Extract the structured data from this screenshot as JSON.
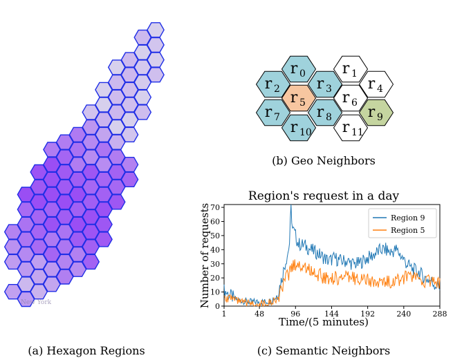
{
  "panels": {
    "a": {
      "caption": "(a)  Hexagon Regions",
      "map_label": "New York"
    },
    "b": {
      "caption": "(b)  Geo Neighbors",
      "cells": [
        {
          "id": "r0",
          "name": "r",
          "sub": "0",
          "type": "neighbor"
        },
        {
          "id": "r1",
          "name": "r",
          "sub": "1",
          "type": "other"
        },
        {
          "id": "r2",
          "name": "r",
          "sub": "2",
          "type": "neighbor"
        },
        {
          "id": "r3",
          "name": "r",
          "sub": "3",
          "type": "neighbor"
        },
        {
          "id": "r4",
          "name": "r",
          "sub": "4",
          "type": "other"
        },
        {
          "id": "r5",
          "name": "r",
          "sub": "5",
          "type": "target"
        },
        {
          "id": "r6",
          "name": "r",
          "sub": "6",
          "type": "other"
        },
        {
          "id": "r7",
          "name": "r",
          "sub": "7",
          "type": "neighbor"
        },
        {
          "id": "r8",
          "name": "r",
          "sub": "8",
          "type": "neighbor"
        },
        {
          "id": "r9",
          "name": "r",
          "sub": "9",
          "type": "semantic"
        },
        {
          "id": "r10",
          "name": "r",
          "sub": "10",
          "type": "neighbor"
        },
        {
          "id": "r11",
          "name": "r",
          "sub": "11",
          "type": "other"
        }
      ],
      "colors": {
        "target": "#f7c6a0",
        "neighbor": "#9fd2dc",
        "semantic": "#c5d5a0",
        "other": "#ffffff"
      }
    },
    "c": {
      "caption": "(c)  Semantic Neighbors"
    }
  },
  "chart_data": {
    "type": "line",
    "title": "Region's request in a day",
    "xlabel": "Time/(5 minutes)",
    "ylabel": "Number of requests",
    "xlim": [
      1,
      288
    ],
    "ylim": [
      0,
      72
    ],
    "xticks": [
      1,
      48,
      96,
      144,
      192,
      240,
      288
    ],
    "yticks": [
      0,
      10,
      20,
      30,
      40,
      50,
      60,
      70
    ],
    "legend_position": "top-right",
    "series": [
      {
        "name": "Region 9",
        "color": "#1f77b4",
        "anchors": [
          [
            1,
            11
          ],
          [
            8,
            8
          ],
          [
            16,
            5
          ],
          [
            24,
            4
          ],
          [
            32,
            3
          ],
          [
            40,
            3
          ],
          [
            48,
            3
          ],
          [
            56,
            3
          ],
          [
            64,
            4
          ],
          [
            72,
            8
          ],
          [
            78,
            20
          ],
          [
            82,
            30
          ],
          [
            86,
            38
          ],
          [
            88,
            45
          ],
          [
            90,
            70
          ],
          [
            92,
            55
          ],
          [
            96,
            50
          ],
          [
            100,
            44
          ],
          [
            108,
            43
          ],
          [
            116,
            40
          ],
          [
            124,
            38
          ],
          [
            132,
            35
          ],
          [
            140,
            32
          ],
          [
            148,
            34
          ],
          [
            156,
            32
          ],
          [
            164,
            32
          ],
          [
            172,
            30
          ],
          [
            180,
            30
          ],
          [
            188,
            33
          ],
          [
            196,
            35
          ],
          [
            204,
            38
          ],
          [
            210,
            40
          ],
          [
            216,
            40
          ],
          [
            222,
            38
          ],
          [
            230,
            40
          ],
          [
            236,
            36
          ],
          [
            244,
            30
          ],
          [
            252,
            26
          ],
          [
            260,
            24
          ],
          [
            268,
            20
          ],
          [
            276,
            18
          ],
          [
            282,
            15
          ],
          [
            288,
            14
          ]
        ],
        "noise": 5
      },
      {
        "name": "Region 5",
        "color": "#ff7f0e",
        "anchors": [
          [
            1,
            8
          ],
          [
            8,
            6
          ],
          [
            16,
            4
          ],
          [
            24,
            3
          ],
          [
            32,
            2
          ],
          [
            40,
            2
          ],
          [
            48,
            2
          ],
          [
            56,
            2
          ],
          [
            64,
            3
          ],
          [
            72,
            5
          ],
          [
            78,
            12
          ],
          [
            84,
            20
          ],
          [
            88,
            24
          ],
          [
            92,
            28
          ],
          [
            96,
            30
          ],
          [
            104,
            28
          ],
          [
            112,
            27
          ],
          [
            120,
            24
          ],
          [
            128,
            22
          ],
          [
            136,
            20
          ],
          [
            144,
            20
          ],
          [
            152,
            20
          ],
          [
            160,
            20
          ],
          [
            168,
            20
          ],
          [
            176,
            20
          ],
          [
            184,
            20
          ],
          [
            192,
            18
          ],
          [
            200,
            17
          ],
          [
            208,
            16
          ],
          [
            216,
            17
          ],
          [
            224,
            18
          ],
          [
            232,
            18
          ],
          [
            240,
            20
          ],
          [
            248,
            20
          ],
          [
            256,
            20
          ],
          [
            264,
            18
          ],
          [
            272,
            18
          ],
          [
            280,
            17
          ],
          [
            288,
            16
          ]
        ],
        "noise": 5
      }
    ]
  }
}
